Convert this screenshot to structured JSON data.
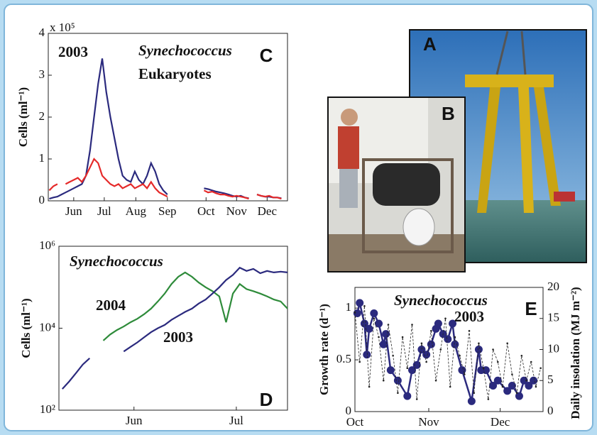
{
  "photo_labels": [
    "A",
    "B"
  ],
  "chart_data": [
    {
      "type": "line",
      "panel_label": "C",
      "annotations": [
        "2003"
      ],
      "y_label": "Cells (ml⁻¹)",
      "y_multiplier": "x 10⁵",
      "x": [
        136,
        140,
        144,
        148,
        152,
        156,
        160,
        164,
        168,
        172,
        176,
        180,
        184,
        188,
        192,
        196,
        200,
        204,
        208,
        212,
        216,
        220,
        224,
        228,
        232,
        236,
        240,
        244,
        248,
        252,
        256,
        260,
        264,
        268,
        272,
        276,
        280,
        284,
        288,
        292,
        296,
        300,
        304,
        308,
        312,
        316,
        320,
        324,
        328,
        332,
        336,
        340,
        344,
        348,
        352,
        356,
        360,
        364
      ],
      "xlim": [
        135,
        370
      ],
      "xticks": [
        {
          "value": 160,
          "label": "Jun"
        },
        {
          "value": 190,
          "label": "Jul"
        },
        {
          "value": 221,
          "label": "Aug"
        },
        {
          "value": 252,
          "label": "Sep"
        },
        {
          "value": 290,
          "label": "Oct"
        },
        {
          "value": 320,
          "label": "Nov"
        },
        {
          "value": 350,
          "label": "Dec"
        }
      ],
      "ylim": [
        0,
        400000
      ],
      "yticks": [
        0,
        {
          "value": 100000,
          "label": "1"
        },
        {
          "value": 200000,
          "label": "2"
        },
        {
          "value": 300000,
          "label": "3"
        },
        {
          "value": 400000,
          "label": "4"
        }
      ],
      "series": [
        {
          "name": "Synechococcus",
          "color": "#2b2a7e",
          "values": [
            5000,
            8000,
            10000,
            15000,
            20000,
            25000,
            30000,
            35000,
            40000,
            60000,
            120000,
            200000,
            280000,
            340000,
            260000,
            200000,
            150000,
            100000,
            60000,
            50000,
            45000,
            70000,
            50000,
            40000,
            60000,
            90000,
            70000,
            40000,
            25000,
            15000,
            null,
            null,
            null,
            null,
            null,
            null,
            null,
            null,
            30000,
            28000,
            25000,
            22000,
            20000,
            18000,
            15000,
            12000,
            10000,
            12000,
            8000,
            6000,
            null,
            15000,
            12000,
            10000,
            10000,
            8000,
            8000,
            6000
          ]
        },
        {
          "name": "Eukaryotes",
          "color": "#e52a2a",
          "values": [
            25000,
            35000,
            40000,
            null,
            40000,
            45000,
            50000,
            55000,
            45000,
            60000,
            80000,
            100000,
            90000,
            60000,
            50000,
            40000,
            35000,
            40000,
            30000,
            35000,
            40000,
            30000,
            35000,
            40000,
            30000,
            45000,
            30000,
            20000,
            15000,
            10000,
            null,
            null,
            null,
            null,
            null,
            null,
            null,
            null,
            25000,
            20000,
            22000,
            18000,
            15000,
            15000,
            12000,
            10000,
            12000,
            10000,
            8000,
            5000,
            null,
            15000,
            12000,
            10000,
            12000,
            8000,
            8000,
            5000
          ]
        }
      ]
    },
    {
      "type": "line",
      "panel_label": "D",
      "annotations": [
        "Synechococcus"
      ],
      "y_label": "Cells (ml⁻¹)",
      "log_scale": true,
      "x": [
        145,
        147,
        149,
        151,
        153,
        155,
        157,
        159,
        161,
        163,
        165,
        167,
        169,
        171,
        173,
        175,
        177,
        179,
        181,
        183,
        185,
        187,
        189,
        191,
        193,
        195,
        197,
        199,
        201,
        203,
        205,
        207,
        209,
        211
      ],
      "xlim": [
        144,
        211
      ],
      "xticks": [
        {
          "value": 166,
          "label": "Jun"
        },
        {
          "value": 196,
          "label": "Jul"
        }
      ],
      "ylim": [
        100,
        1000000
      ],
      "yticks": [
        {
          "value": 100,
          "label": "10²"
        },
        {
          "value": 10000,
          "label": "10⁴"
        },
        {
          "value": 1000000,
          "label": "10⁶"
        }
      ],
      "series": [
        {
          "name": "2004",
          "color": "#2e8b3a",
          "values": [
            null,
            null,
            null,
            null,
            null,
            null,
            5000,
            7000,
            9000,
            11000,
            14000,
            17000,
            22000,
            30000,
            45000,
            70000,
            120000,
            180000,
            230000,
            180000,
            130000,
            100000,
            80000,
            60000,
            14000,
            70000,
            120000,
            90000,
            80000,
            70000,
            60000,
            50000,
            45000,
            30000
          ]
        },
        {
          "name": "2003",
          "color": "#2b2a7e",
          "values": [
            330,
            500,
            800,
            1300,
            1850,
            null,
            null,
            null,
            null,
            2700,
            3500,
            4500,
            6000,
            8000,
            10000,
            12000,
            16000,
            20000,
            25000,
            30000,
            40000,
            50000,
            70000,
            100000,
            150000,
            200000,
            300000,
            250000,
            280000,
            220000,
            250000,
            230000,
            240000,
            230000
          ]
        }
      ]
    },
    {
      "type": "line",
      "panel_label": "E",
      "annotations": [
        "Synechococcus",
        "2003"
      ],
      "y_label": "Growth rate (d⁻¹)",
      "y2_label": "Daily insolation (MJ m⁻²)",
      "xlim": [
        274,
        353
      ],
      "xticks": [
        {
          "value": 274,
          "label": "Oct"
        },
        {
          "value": 305,
          "label": "Nov"
        },
        {
          "value": 335,
          "label": "Dec"
        }
      ],
      "ylim": [
        0,
        1.2
      ],
      "yticks": [
        0,
        0.5,
        1
      ],
      "y2lim": [
        0,
        20
      ],
      "y2ticks": [
        0,
        5,
        10,
        15,
        20
      ],
      "series": [
        {
          "color": "#2b2a7e",
          "marker": "circle",
          "x": [
            275,
            276,
            278,
            279,
            280,
            282,
            284,
            286,
            287,
            289,
            292,
            296,
            298,
            300,
            302,
            304,
            306,
            308,
            309,
            311,
            313,
            315,
            316,
            319,
            323,
            326,
            327,
            329,
            332,
            334,
            338,
            340,
            343,
            345,
            347,
            349
          ],
          "values": [
            0.95,
            1.05,
            0.85,
            0.55,
            0.8,
            0.95,
            0.85,
            0.65,
            0.75,
            0.4,
            0.3,
            0.15,
            0.4,
            0.45,
            0.6,
            0.55,
            0.65,
            0.8,
            0.85,
            0.75,
            0.7,
            0.85,
            0.65,
            0.4,
            0.1,
            0.6,
            0.4,
            0.4,
            0.25,
            0.3,
            0.2,
            0.25,
            0.15,
            0.3,
            0.25,
            0.3
          ]
        },
        {
          "color": "#222222",
          "axis": "y2",
          "dashed": true,
          "marker": "dot",
          "x": [
            274,
            276,
            278,
            280,
            282,
            284,
            286,
            288,
            290,
            292,
            294,
            296,
            298,
            300,
            302,
            304,
            306,
            308,
            310,
            312,
            314,
            316,
            318,
            320,
            322,
            324,
            326,
            328,
            330,
            332,
            334,
            336,
            338,
            340,
            342,
            344,
            346,
            348,
            350,
            352
          ],
          "values": [
            16,
            8,
            17,
            4,
            15,
            12,
            5,
            14,
            9,
            3,
            12,
            7,
            14,
            2,
            11,
            8,
            13,
            5,
            10,
            15,
            4,
            12,
            9,
            6,
            13,
            3,
            11,
            7,
            2,
            10,
            8,
            4,
            11,
            6,
            3,
            9,
            5,
            8,
            4,
            7
          ]
        }
      ]
    }
  ]
}
